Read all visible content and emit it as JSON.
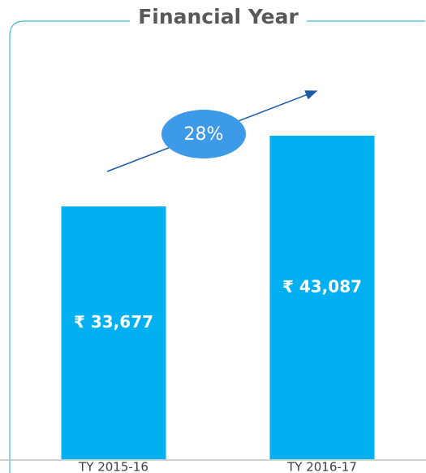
{
  "chart_data": {
    "type": "bar",
    "title": "Financial Year",
    "categories": [
      "TY 2015-16",
      "TY 2016-17"
    ],
    "values": [
      33677,
      43087
    ],
    "value_labels": [
      "₹ 33,677",
      "₹ 43,087"
    ],
    "annotation": "28%",
    "color": "#00b0f0"
  }
}
